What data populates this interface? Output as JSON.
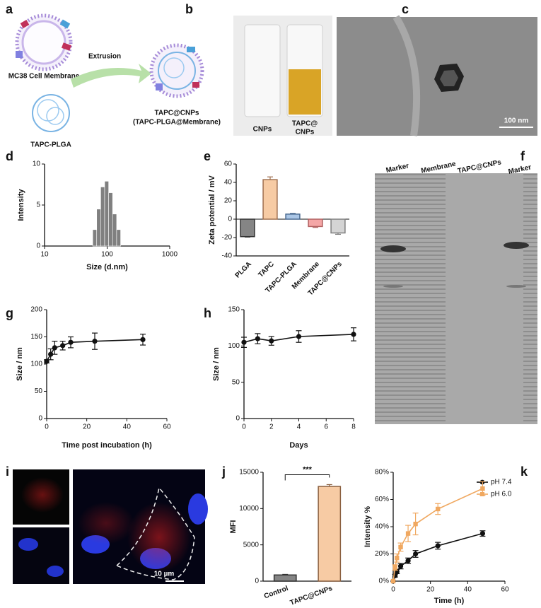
{
  "panel_labels": [
    "a",
    "b",
    "c",
    "d",
    "e",
    "f",
    "g",
    "h",
    "i",
    "j",
    "k"
  ],
  "figure_a": {
    "membrane_label": "MC38 Cell Membrane",
    "arrow_label": "Extrusion",
    "core_label": "TAPC-PLGA",
    "product_label": "TAPC@CNPs",
    "product_sublabel": "(TAPC-PLGA@Membrane)"
  },
  "figure_b": {
    "left_label": "CNPs",
    "right_label_lines": [
      "TAPC@",
      "CNPs"
    ]
  },
  "figure_c": {
    "scale_bar": "100 nm"
  },
  "figure_f": {
    "lanes": [
      "Marker",
      "Membrane",
      "TAPC@CNPs",
      "Marker"
    ]
  },
  "figure_i": {
    "scale_bar": "10 µm"
  },
  "chart_data": [
    {
      "type": "histogram",
      "x_label": "Size (d.nm)",
      "y_label": "Intensity",
      "bins": [
        58.8,
        68.1,
        78.8,
        91.3,
        105.7,
        122.4,
        141.8,
        164.2
      ],
      "counts": [
        2.0,
        4.5,
        7.2,
        7.9,
        6.5,
        3.9,
        2.0
      ],
      "color": "#808080",
      "xscale": "log",
      "xlim": [
        10,
        1000
      ],
      "xticks": [
        10,
        100,
        1000
      ],
      "ylim": [
        0,
        10
      ],
      "yticks": [
        0,
        5,
        10
      ]
    },
    {
      "type": "bar",
      "y_label": "Zeta potential / mV",
      "categories": [
        "PLGA",
        "TAPC",
        "TAPC-PLGA",
        "Membrane",
        "TAPC@CNPs"
      ],
      "values": [
        -19,
        43,
        5.5,
        -8,
        -15
      ],
      "errors": [
        0.5,
        3,
        0.8,
        1,
        1.5
      ],
      "colors": [
        "#858585",
        "#f7cba4",
        "#aac6e6",
        "#f4a6a6",
        "#d4d4d4"
      ],
      "edge_colors": [
        "#333333",
        "#a07050",
        "#4a6a90",
        "#b06060",
        "#808080"
      ],
      "ylim": [
        -40,
        60
      ],
      "yticks": [
        -40,
        -20,
        0,
        20,
        40,
        60
      ]
    },
    {
      "type": "line",
      "x_label": "Time post incubation (h)",
      "y_label": "Size / nm",
      "x": [
        0,
        2,
        4,
        8,
        12,
        24,
        48
      ],
      "series": [
        {
          "name": null,
          "color": "#111111",
          "values": [
            105,
            118,
            130,
            134,
            140,
            142,
            145
          ],
          "errors": [
            3,
            10,
            12,
            8,
            10,
            15,
            10
          ]
        }
      ],
      "xlim": [
        0,
        60
      ],
      "xticks": [
        0,
        20,
        40,
        60
      ],
      "ylim": [
        0,
        200
      ],
      "yticks": [
        0,
        50,
        100,
        150,
        200
      ]
    },
    {
      "type": "line",
      "x_label": "Days",
      "y_label": "Size / nm",
      "x": [
        0,
        1,
        2,
        4,
        8
      ],
      "series": [
        {
          "name": null,
          "color": "#111111",
          "values": [
            105,
            110,
            107,
            113,
            116
          ],
          "errors": [
            7,
            7,
            6,
            8,
            9
          ]
        }
      ],
      "xlim": [
        0,
        8
      ],
      "xticks": [
        0,
        2,
        4,
        6,
        8
      ],
      "ylim": [
        0,
        150
      ],
      "yticks": [
        0,
        50,
        100,
        150
      ]
    },
    {
      "type": "bar",
      "y_label": "MFI",
      "annotation": "***",
      "categories": [
        "Control",
        "TAPC@CNPs"
      ],
      "values": [
        850,
        13050
      ],
      "errors": [
        80,
        250
      ],
      "colors": [
        "#858585",
        "#f7cba4"
      ],
      "edge_colors": [
        "#333333",
        "#8a6040"
      ],
      "ylim": [
        0,
        15000
      ],
      "yticks": [
        0,
        5000,
        10000,
        15000
      ]
    },
    {
      "type": "line",
      "x_label": "Time (h)",
      "y_label": "Intensity %",
      "legend": "upper right",
      "x": [
        0,
        1,
        2,
        4,
        8,
        12,
        24,
        48
      ],
      "series": [
        {
          "name": "pH 7.4",
          "color": "#111111",
          "values": [
            0,
            4,
            7,
            11,
            15,
            20,
            26,
            35
          ],
          "errors": [
            0,
            1,
            1.5,
            2,
            2,
            2.5,
            2.5,
            2
          ]
        },
        {
          "name": "pH 6.0",
          "color": "#f0a860",
          "values": [
            0,
            10,
            17,
            25,
            35,
            42,
            53,
            68
          ],
          "errors": [
            0,
            2,
            3,
            3,
            6,
            8,
            4,
            5
          ]
        }
      ],
      "xlim": [
        0,
        60
      ],
      "xticks": [
        0,
        20,
        40,
        60
      ],
      "ylim": [
        0,
        80
      ],
      "yticks": [
        {
          "value": 0,
          "label": "0%"
        },
        {
          "value": 20,
          "label": "20%"
        },
        {
          "value": 40,
          "label": "40%"
        },
        {
          "value": 60,
          "label": "60%"
        },
        {
          "value": 80,
          "label": "80%"
        }
      ]
    }
  ]
}
